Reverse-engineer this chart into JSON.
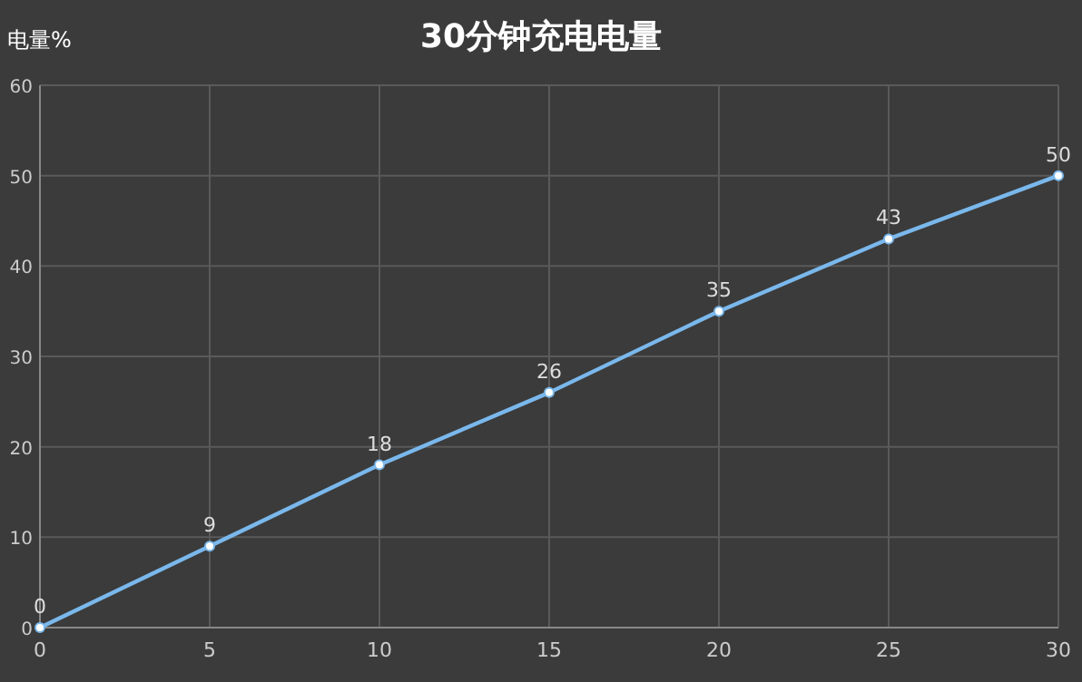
{
  "chart_data": {
    "type": "line",
    "title": "30分钟充电电量",
    "ylabel": "电量%",
    "x": [
      0,
      5,
      10,
      15,
      20,
      25,
      30
    ],
    "values": [
      0,
      9,
      18,
      26,
      35,
      43,
      50
    ],
    "color": "#7ab8ec",
    "xlim": [
      0,
      30
    ],
    "ylim": [
      0,
      60
    ],
    "xticks": [
      0,
      5,
      10,
      15,
      20,
      25,
      30
    ],
    "yticks": [
      0,
      10,
      20,
      30,
      40,
      50,
      60
    ],
    "grid": true,
    "data_labels": true,
    "marker": "circle"
  }
}
